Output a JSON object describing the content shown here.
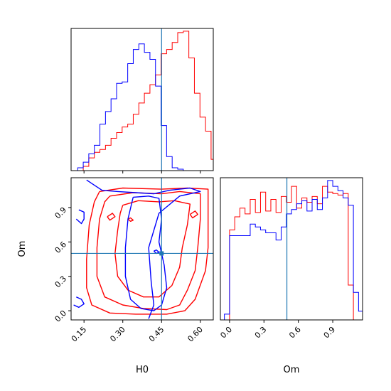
{
  "chart_data": {
    "type": "corner",
    "title": "",
    "parameters": [
      "H0",
      "Om"
    ],
    "truth": {
      "H0": 0.45,
      "Om": 0.5
    },
    "colors": {
      "red": "#ff0000",
      "blue": "#0000ff",
      "truth": "#1f77b4"
    },
    "panels": [
      {
        "id": "hist_H0",
        "type": "step-histogram",
        "xlim": [
          0.1,
          0.65
        ],
        "bin_width": 0.0215,
        "x_start": 0.104,
        "series": [
          {
            "name": "",
            "color": "#ff0000",
            "values": [
              0,
              0,
              0.03,
              0.09,
              0.13,
              0.15,
              0.18,
              0.23,
              0.27,
              0.31,
              0.33,
              0.4,
              0.48,
              0.55,
              0.61,
              0.68,
              0.83,
              0.86,
              0.91,
              0.98,
              0.99,
              0.8,
              0.55,
              0.38,
              0.28,
              0.08
            ]
          },
          {
            "name": "",
            "color": "#0000ff",
            "values": [
              0,
              0.02,
              0.06,
              0.12,
              0.18,
              0.33,
              0.42,
              0.51,
              0.62,
              0.63,
              0.76,
              0.86,
              0.9,
              0.84,
              0.79,
              0.6,
              0.32,
              0.1,
              0.02,
              0.01,
              0,
              0,
              0,
              0,
              0,
              0
            ]
          }
        ]
      },
      {
        "id": "hist_Om",
        "type": "step-histogram",
        "xlim": [
          -0.08,
          1.16
        ],
        "bin_width": 0.045,
        "x_start": -0.045,
        "series": [
          {
            "name": "",
            "color": "#ff0000",
            "values": [
              0,
              0.62,
              0.71,
              0.77,
              0.73,
              0.83,
              0.74,
              0.88,
              0.75,
              0.83,
              0.74,
              0.85,
              0.81,
              0.92,
              0.77,
              0.84,
              0.81,
              0.85,
              0.8,
              0.92,
              0.88,
              0.87,
              0.86,
              0.87,
              0.24,
              0
            ]
          },
          {
            "name": "",
            "color": "#0000ff",
            "values": [
              0.04,
              0.58,
              0.58,
              0.58,
              0.58,
              0.66,
              0.64,
              0.62,
              0.6,
              0.6,
              0.55,
              0.64,
              0.73,
              0.76,
              0.8,
              0.82,
              0.75,
              0.83,
              0.76,
              0.84,
              0.96,
              0.92,
              0.89,
              0.84,
              0.79,
              0.19,
              0.06,
              0
            ]
          }
        ]
      },
      {
        "id": "contour_Om_vs_H0",
        "type": "contour",
        "xlim": [
          0.1,
          0.65
        ],
        "ylim": [
          -0.08,
          1.16
        ],
        "xlabel": "H0",
        "ylabel": "Om",
        "xticks": [
          0.15,
          0.3,
          0.45,
          0.6
        ],
        "yticks": [
          0.0,
          0.3,
          0.6,
          0.9
        ],
        "series": [
          {
            "name": "",
            "color": "#ff0000",
            "contours": [
              [
                [
                  0.21,
                  1.04
                ],
                [
                  0.3,
                  1.07
                ],
                [
                  0.45,
                  1.06
                ],
                [
                  0.55,
                  1.07
                ],
                [
                  0.63,
                  1.06
                ],
                [
                  0.63,
                  0.9
                ],
                [
                  0.63,
                  0.55
                ],
                [
                  0.62,
                  0.35
                ],
                [
                  0.58,
                  0.1
                ],
                [
                  0.54,
                  0.0
                ],
                [
                  0.47,
                  -0.03
                ],
                [
                  0.35,
                  -0.03
                ],
                [
                  0.25,
                  -0.02
                ],
                [
                  0.18,
                  0.05
                ],
                [
                  0.16,
                  0.2
                ],
                [
                  0.16,
                  0.45
                ],
                [
                  0.17,
                  0.75
                ],
                [
                  0.19,
                  0.95
                ],
                [
                  0.21,
                  1.04
                ]
              ],
              [
                [
                  0.25,
                  1.0
                ],
                [
                  0.34,
                  1.03
                ],
                [
                  0.45,
                  1.02
                ],
                [
                  0.52,
                  1.04
                ],
                [
                  0.6,
                  1.02
                ],
                [
                  0.6,
                  0.8
                ],
                [
                  0.59,
                  0.55
                ],
                [
                  0.58,
                  0.35
                ],
                [
                  0.55,
                  0.18
                ],
                [
                  0.52,
                  0.05
                ],
                [
                  0.47,
                  0.01
                ],
                [
                  0.38,
                  0.02
                ],
                [
                  0.3,
                  0.05
                ],
                [
                  0.23,
                  0.12
                ],
                [
                  0.2,
                  0.3
                ],
                [
                  0.2,
                  0.55
                ],
                [
                  0.21,
                  0.8
                ],
                [
                  0.23,
                  0.95
                ],
                [
                  0.25,
                  1.0
                ]
              ],
              [
                [
                  0.3,
                  0.92
                ],
                [
                  0.36,
                  0.96
                ],
                [
                  0.44,
                  0.95
                ],
                [
                  0.5,
                  0.96
                ],
                [
                  0.56,
                  0.93
                ],
                [
                  0.55,
                  0.75
                ],
                [
                  0.53,
                  0.55
                ],
                [
                  0.52,
                  0.38
                ],
                [
                  0.49,
                  0.22
                ],
                [
                  0.44,
                  0.12
                ],
                [
                  0.38,
                  0.12
                ],
                [
                  0.32,
                  0.18
                ],
                [
                  0.28,
                  0.3
                ],
                [
                  0.27,
                  0.5
                ],
                [
                  0.28,
                  0.7
                ],
                [
                  0.29,
                  0.85
                ],
                [
                  0.3,
                  0.92
                ]
              ],
              [
                [
                  0.56,
                  0.84
                ],
                [
                  0.58,
                  0.87
                ],
                [
                  0.59,
                  0.84
                ],
                [
                  0.57,
                  0.81
                ],
                [
                  0.56,
                  0.84
                ]
              ],
              [
                [
                  0.24,
                  0.82
                ],
                [
                  0.26,
                  0.85
                ],
                [
                  0.27,
                  0.82
                ],
                [
                  0.25,
                  0.79
                ],
                [
                  0.24,
                  0.82
                ]
              ],
              [
                [
                  0.32,
                  0.8
                ],
                [
                  0.33,
                  0.81
                ],
                [
                  0.34,
                  0.79
                ],
                [
                  0.33,
                  0.78
                ],
                [
                  0.32,
                  0.8
                ]
              ]
            ]
          },
          {
            "name": "",
            "color": "#0000ff",
            "contours": [
              [
                [
                  0.16,
                  1.14
                ],
                [
                  0.22,
                  1.05
                ],
                [
                  0.28,
                  1.04
                ],
                [
                  0.35,
                  1.03
                ],
                [
                  0.42,
                  1.02
                ],
                [
                  0.48,
                  1.05
                ],
                [
                  0.56,
                  1.07
                ],
                [
                  0.6,
                  1.04
                ],
                [
                  0.52,
                  1.0
                ],
                [
                  0.44,
                  0.85
                ],
                [
                  0.4,
                  0.55
                ],
                [
                  0.41,
                  0.25
                ],
                [
                  0.42,
                  0.05
                ],
                [
                  0.4,
                  -0.07
                ]
              ],
              [
                [
                  0.34,
                  0.99
                ],
                [
                  0.4,
                  1.0
                ],
                [
                  0.44,
                  0.98
                ],
                [
                  0.45,
                  0.8
                ],
                [
                  0.44,
                  0.6
                ],
                [
                  0.46,
                  0.4
                ],
                [
                  0.47,
                  0.2
                ],
                [
                  0.45,
                  0.05
                ],
                [
                  0.42,
                  0.0
                ],
                [
                  0.37,
                  0.02
                ],
                [
                  0.33,
                  0.1
                ],
                [
                  0.31,
                  0.3
                ],
                [
                  0.31,
                  0.55
                ],
                [
                  0.32,
                  0.8
                ],
                [
                  0.34,
                  0.99
                ]
              ],
              [
                [
                  0.12,
                  0.12
                ],
                [
                  0.14,
                  0.1
                ],
                [
                  0.15,
                  0.06
                ],
                [
                  0.13,
                  0.03
                ],
                [
                  0.11,
                  0.05
                ]
              ],
              [
                [
                  0.13,
                  0.88
                ],
                [
                  0.15,
                  0.86
                ],
                [
                  0.15,
                  0.8
                ],
                [
                  0.14,
                  0.76
                ],
                [
                  0.12,
                  0.8
                ]
              ],
              [
                [
                  0.42,
                  0.52
                ],
                [
                  0.43,
                  0.53
                ],
                [
                  0.44,
                  0.51
                ],
                [
                  0.43,
                  0.5
                ],
                [
                  0.42,
                  0.52
                ]
              ]
            ]
          }
        ]
      }
    ],
    "om_hist_xlabel": "Om",
    "om_hist_xticks": [
      0.0,
      0.3,
      0.6,
      0.9
    ]
  }
}
